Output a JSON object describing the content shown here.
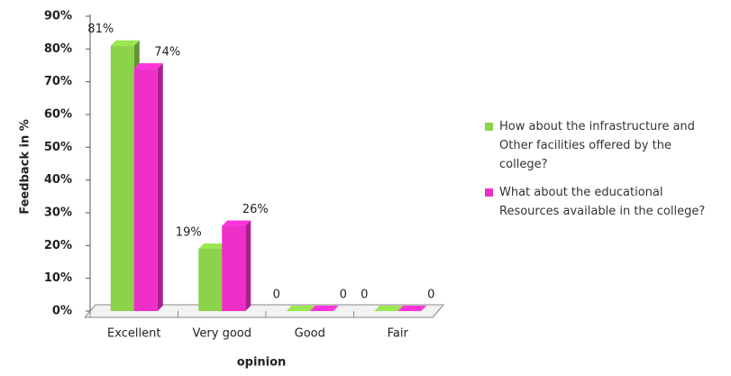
{
  "chart_data": {
    "type": "bar3d",
    "y_label": "Feedback in %",
    "x_label": "opinion",
    "categories": [
      "Excellent",
      "Very good",
      "Good",
      "Fair"
    ],
    "series": [
      {
        "name": "How about the infrastructure and Other facilities offered by the college?",
        "color": "#8cd24a",
        "values": [
          81,
          19,
          0,
          0
        ],
        "value_labels": [
          "81%",
          "19%",
          "0",
          "0"
        ]
      },
      {
        "name": "What about the educational Resources available in the college?",
        "color": "#ee2fc8",
        "values": [
          74,
          26,
          0,
          0
        ],
        "value_labels": [
          "74%",
          "26%",
          "0",
          "0"
        ]
      }
    ],
    "ylim": [
      0,
      90
    ],
    "yticks": [
      {
        "value": 0,
        "label": "0%"
      },
      {
        "value": 10,
        "label": "10%"
      },
      {
        "value": 20,
        "label": "20%"
      },
      {
        "value": 30,
        "label": "30%"
      },
      {
        "value": 40,
        "label": "40%"
      },
      {
        "value": 50,
        "label": "50%"
      },
      {
        "value": 60,
        "label": "60%"
      },
      {
        "value": 70,
        "label": "70%"
      },
      {
        "value": 80,
        "label": "80%"
      },
      {
        "value": 90,
        "label": "90%"
      }
    ],
    "grid": false,
    "legend": "right"
  }
}
